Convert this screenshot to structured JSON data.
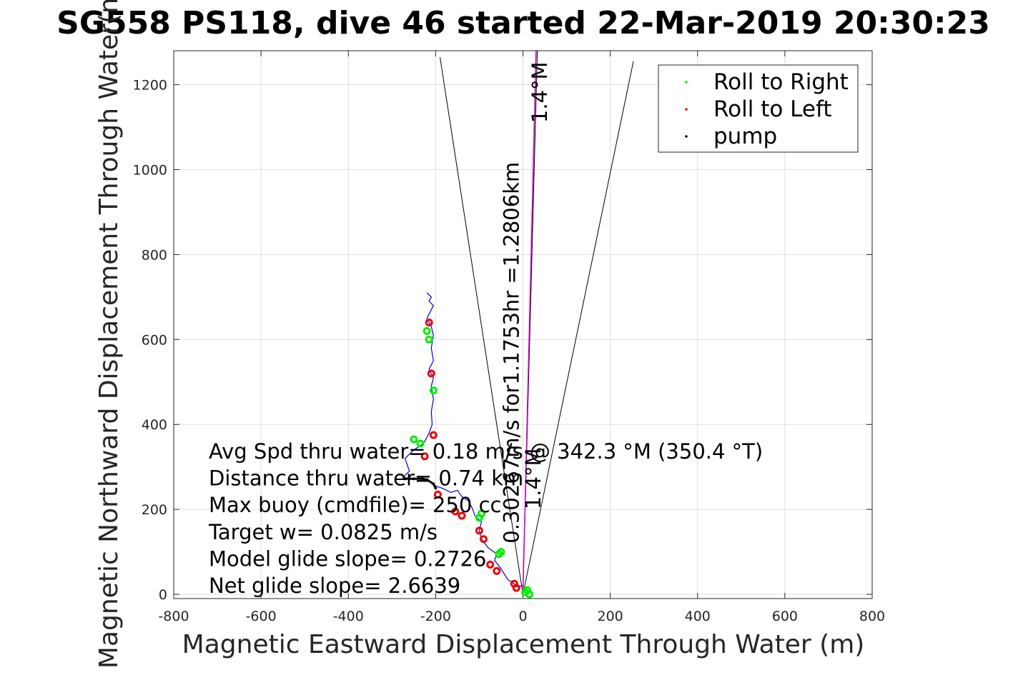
{
  "chart_data": {
    "type": "line",
    "title": "SG558 PS118, dive 46 started 22-Mar-2019 20:30:23",
    "xlabel": "Magnetic Eastward Displacement Through Water (m)",
    "ylabel": "Magnetic Northward Displacement Through Water(m)",
    "xlim": [
      -800,
      800
    ],
    "ylim": [
      -10,
      1280
    ],
    "x_ticks": [
      -800,
      -600,
      -400,
      -200,
      0,
      200,
      400,
      600,
      800
    ],
    "y_ticks": [
      0,
      200,
      400,
      600,
      800,
      1000,
      1200
    ],
    "grid": true,
    "legend": {
      "placement": "top-right",
      "entries": [
        {
          "label": "Roll to Right",
          "color": "#00ee00"
        },
        {
          "label": "Roll to Left",
          "color": "#ee0000"
        },
        {
          "label": "pump",
          "color": "#000000"
        }
      ]
    },
    "track": {
      "color": "#0000cc",
      "x": [
        0,
        -15,
        -20,
        -35,
        -50,
        -65,
        -60,
        -80,
        -95,
        -100,
        -95,
        -110,
        -115,
        -125,
        -140,
        -150,
        -165,
        -185,
        -200,
        -210,
        -220,
        -245,
        -275,
        -260,
        -270,
        -250,
        -235,
        -225,
        -215,
        -208,
        -210,
        -205,
        -210,
        -205,
        -215,
        -205,
        -210,
        -205,
        -210,
        -220,
        -210,
        -205,
        -215,
        -210,
        -220
      ],
      "y": [
        20,
        18,
        25,
        35,
        60,
        80,
        95,
        110,
        130,
        150,
        170,
        185,
        200,
        220,
        230,
        245,
        240,
        250,
        255,
        265,
        270,
        272,
        275,
        290,
        320,
        340,
        350,
        360,
        380,
        400,
        430,
        460,
        490,
        510,
        530,
        550,
        580,
        610,
        630,
        650,
        670,
        680,
        690,
        700,
        710
      ]
    },
    "roll_right": {
      "color": "#00ee00",
      "x": [
        10,
        5,
        15,
        -55,
        -50,
        -100,
        -95,
        -235,
        -250,
        -220,
        -215,
        -205
      ],
      "y": [
        10,
        5,
        0,
        95,
        100,
        180,
        190,
        355,
        365,
        620,
        600,
        480
      ]
    },
    "roll_left": {
      "color": "#ee0000",
      "x": [
        -15,
        -20,
        -60,
        -75,
        -90,
        -100,
        -140,
        -155,
        -195,
        -225,
        -205,
        -210,
        -215
      ],
      "y": [
        15,
        25,
        55,
        70,
        130,
        150,
        185,
        195,
        235,
        325,
        375,
        520,
        640
      ]
    },
    "pump": {
      "color": "#000000",
      "x": [
        -270,
        -250,
        -230,
        -220,
        -205,
        -200
      ],
      "y": [
        272,
        272,
        272,
        270,
        260,
        250
      ]
    },
    "heading_lines": {
      "color": "#000000",
      "segments": [
        {
          "x": [
            0,
            -190
          ],
          "y": [
            0,
            1265
          ]
        },
        {
          "x": [
            0,
            253
          ],
          "y": [
            0,
            1255
          ]
        },
        {
          "x": [
            0,
            33
          ],
          "y": [
            0,
            1280
          ]
        }
      ]
    },
    "target_line": {
      "color": "#cc00cc",
      "x": [
        0,
        30
      ],
      "y": [
        0,
        1280
      ]
    },
    "annotations": [
      "Avg Spd thru water=  0.18 m/s @ 342.3 °M (350.4 °T)",
      "Distance thru water=  0.74 km",
      "Max buoy (cmdfile)= 250 cc",
      "Target w= 0.0825 m/s",
      "Model glide slope= 0.2726",
      "Net glide slope= 2.6639"
    ],
    "rotated_annotations": [
      {
        "text": "0.30267m/s for1.1753hr =1.2806km",
        "x": -10,
        "y": 120
      },
      {
        "text": "1.4°M",
        "x": 55,
        "y": 1110
      },
      {
        "text": "1.4°M",
        "x": 40,
        "y": 200
      }
    ]
  }
}
